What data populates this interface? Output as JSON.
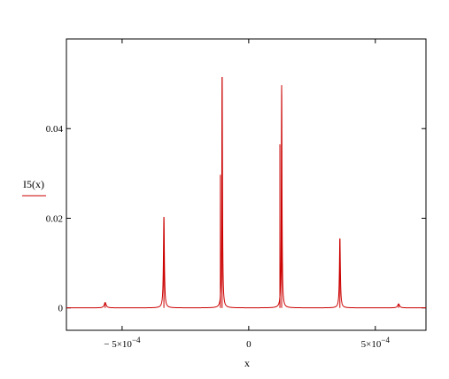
{
  "chart_data": {
    "type": "line",
    "xlabel": "x",
    "ylabel": "",
    "xlim": [
      -0.00072,
      0.0007
    ],
    "ylim": [
      -0.005,
      0.06
    ],
    "grid": false,
    "legend_position": "left",
    "x_ticks": [
      {
        "value": -0.0005,
        "mantissa": "− 5×10",
        "exp": "−4"
      },
      {
        "value": 0,
        "mantissa": "0",
        "exp": ""
      },
      {
        "value": 0.0005,
        "mantissa": "5×10",
        "exp": "−4"
      }
    ],
    "y_ticks": [
      {
        "value": 0,
        "label": "0"
      },
      {
        "value": 0.02,
        "label": "0.02"
      },
      {
        "value": 0.04,
        "label": "0.04"
      }
    ],
    "series": [
      {
        "name": "I5(x)",
        "color": "#cc0000",
        "baseline": 0,
        "peaks": [
          {
            "center": -0.000567,
            "height": 0.0012,
            "width": 4.5e-06
          },
          {
            "center": -0.000335,
            "height": 0.0203,
            "width": 2.2e-06
          },
          {
            "center": -0.000105,
            "height": 0.0515,
            "width": 1.6e-06
          },
          {
            "center": 0.00013,
            "height": 0.0497,
            "width": 1.6e-06
          },
          {
            "center": 0.00036,
            "height": 0.0155,
            "width": 2.2e-06
          },
          {
            "center": 0.000592,
            "height": 0.0009,
            "width": 4.5e-06
          }
        ],
        "secondary_lines": [
          {
            "center": -0.000105,
            "height": 0.0297
          },
          {
            "center": 0.00013,
            "height": 0.0365
          }
        ]
      }
    ]
  }
}
